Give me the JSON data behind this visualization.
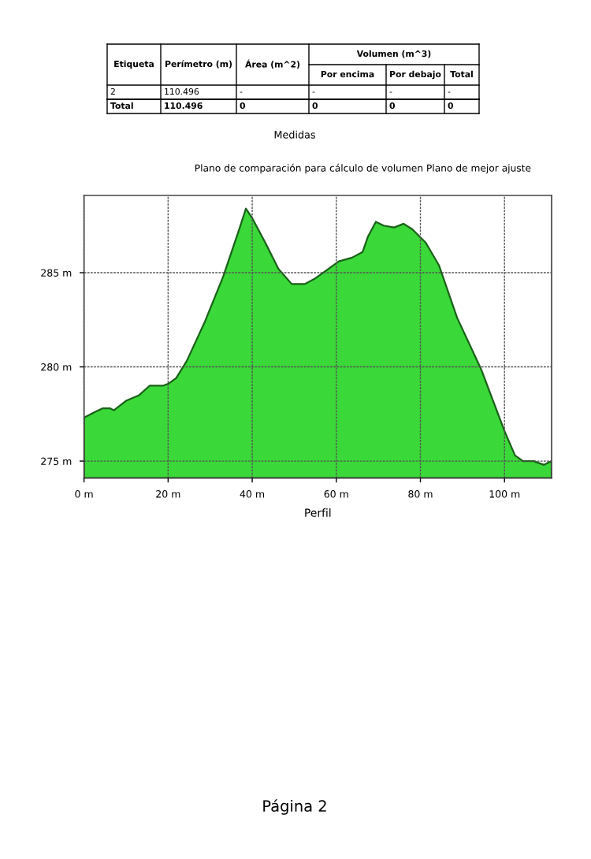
{
  "chart_data": {
    "type": "area",
    "xlabel": "Perfil",
    "annotations": [
      "Etiqueta",
      "Perímetro (m)",
      "Área (m^2)",
      "Volumen (m^3)",
      "Por encima",
      "Por debajo",
      "Total",
      "2",
      "110.496",
      "-",
      "-",
      "-",
      "-",
      "Total",
      "110.496",
      "0",
      "0",
      "0",
      "0",
      "Medidas",
      "Plano de comparación para cálculo de volumen Plano de mejor ajuste",
      "Página 2"
    ],
    "series": [
      {
        "color": "#3ad838",
        "x": [
          0,
          2.5,
          4.4,
          6.25,
          7.1,
          10,
          13.1,
          15.6,
          18.75,
          20,
          21.9,
          24.4,
          28.75,
          33.1,
          36.9,
          38.5,
          40,
          43.1,
          46.25,
          49.4,
          52.5,
          55,
          57.5,
          60.6,
          63.75,
          66.25,
          67.5,
          69.4,
          71.25,
          73.75,
          76,
          78.1,
          81.25,
          84.4,
          88.75,
          94.4,
          100,
          102.5,
          104.4,
          106.9,
          109.4,
          111.2
        ],
        "values": [
          277.3,
          277.6,
          277.8,
          277.8,
          277.7,
          278.2,
          278.5,
          279.0,
          279.0,
          279.1,
          279.4,
          280.3,
          282.4,
          284.8,
          287.3,
          288.4,
          287.9,
          286.6,
          285.2,
          284.4,
          284.4,
          284.7,
          285.1,
          285.6,
          285.8,
          286.1,
          286.9,
          287.7,
          287.5,
          287.4,
          287.6,
          287.3,
          286.6,
          285.4,
          282.6,
          279.9,
          276.6,
          275.3,
          275.0,
          275.0,
          274.8,
          275.0
        ]
      }
    ],
    "xlim": [
      0,
      111.2
    ],
    "ylim": [
      274.1,
      289.1
    ],
    "xticks": [
      {
        "value": 0,
        "label": "0 m"
      },
      {
        "value": 20,
        "label": "20 m"
      },
      {
        "value": 40,
        "label": "40 m"
      },
      {
        "value": 60,
        "label": "60 m"
      },
      {
        "value": 80,
        "label": "80 m"
      },
      {
        "value": 100,
        "label": "100 m"
      }
    ],
    "yticks": [
      {
        "value": 275,
        "label": "275 m"
      },
      {
        "value": 280,
        "label": "280 m"
      },
      {
        "value": 285,
        "label": "285 m"
      }
    ],
    "grid": true
  }
}
